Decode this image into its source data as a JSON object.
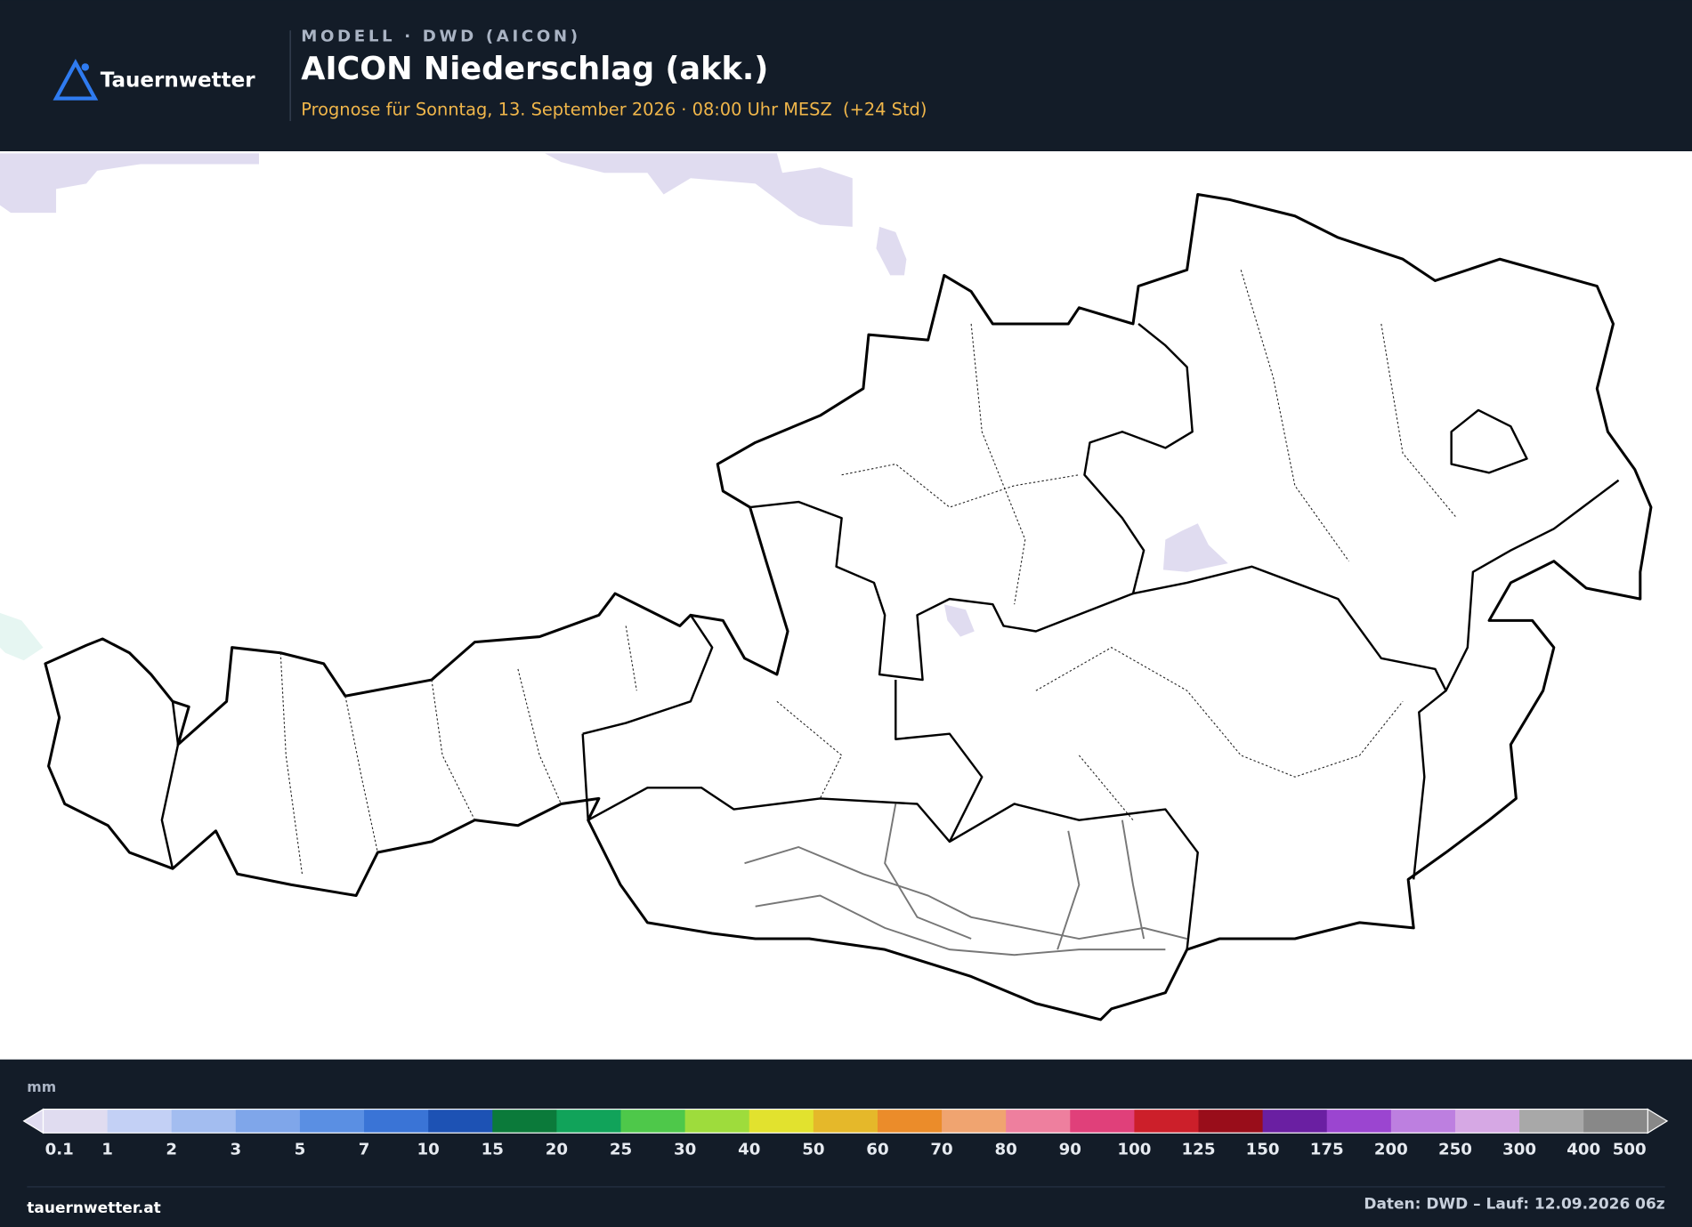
{
  "header": {
    "logo": "Tauernwetter",
    "kicker": "MODELL · DWD (AICON)",
    "title": "AICON Niederschlag (akk.)",
    "subtitle": "Prognose für Sonntag, 13. September 2026 · 08:00 Uhr MESZ  (+24 Std)"
  },
  "legend": {
    "unit": "mm",
    "levels": [
      0.1,
      1,
      2,
      3,
      5,
      7,
      10,
      15,
      20,
      25,
      30,
      40,
      50,
      60,
      70,
      80,
      90,
      100,
      125,
      150,
      175,
      200,
      250,
      300,
      400,
      500
    ],
    "colors": [
      "#e0dcf0",
      "#c3d0f5",
      "#a3bdf0",
      "#7fa6ea",
      "#5a8fe3",
      "#3a74d6",
      "#1d52b4",
      "#0b7a3a",
      "#11a35a",
      "#4ec84a",
      "#9edc3c",
      "#e2e22e",
      "#e5b82a",
      "#eb8c2a",
      "#f0a470",
      "#ee7f9e",
      "#e0407a",
      "#cc1f2a",
      "#990d1a",
      "#6a1fa2",
      "#9b45d0",
      "#bd7fe0",
      "#d6a8e4",
      "#a8a8a8",
      "#888888"
    ]
  },
  "footer": {
    "site": "tauernwetter.at",
    "source": "Daten: DWD – Lauf: 12.09.2026 06z"
  }
}
